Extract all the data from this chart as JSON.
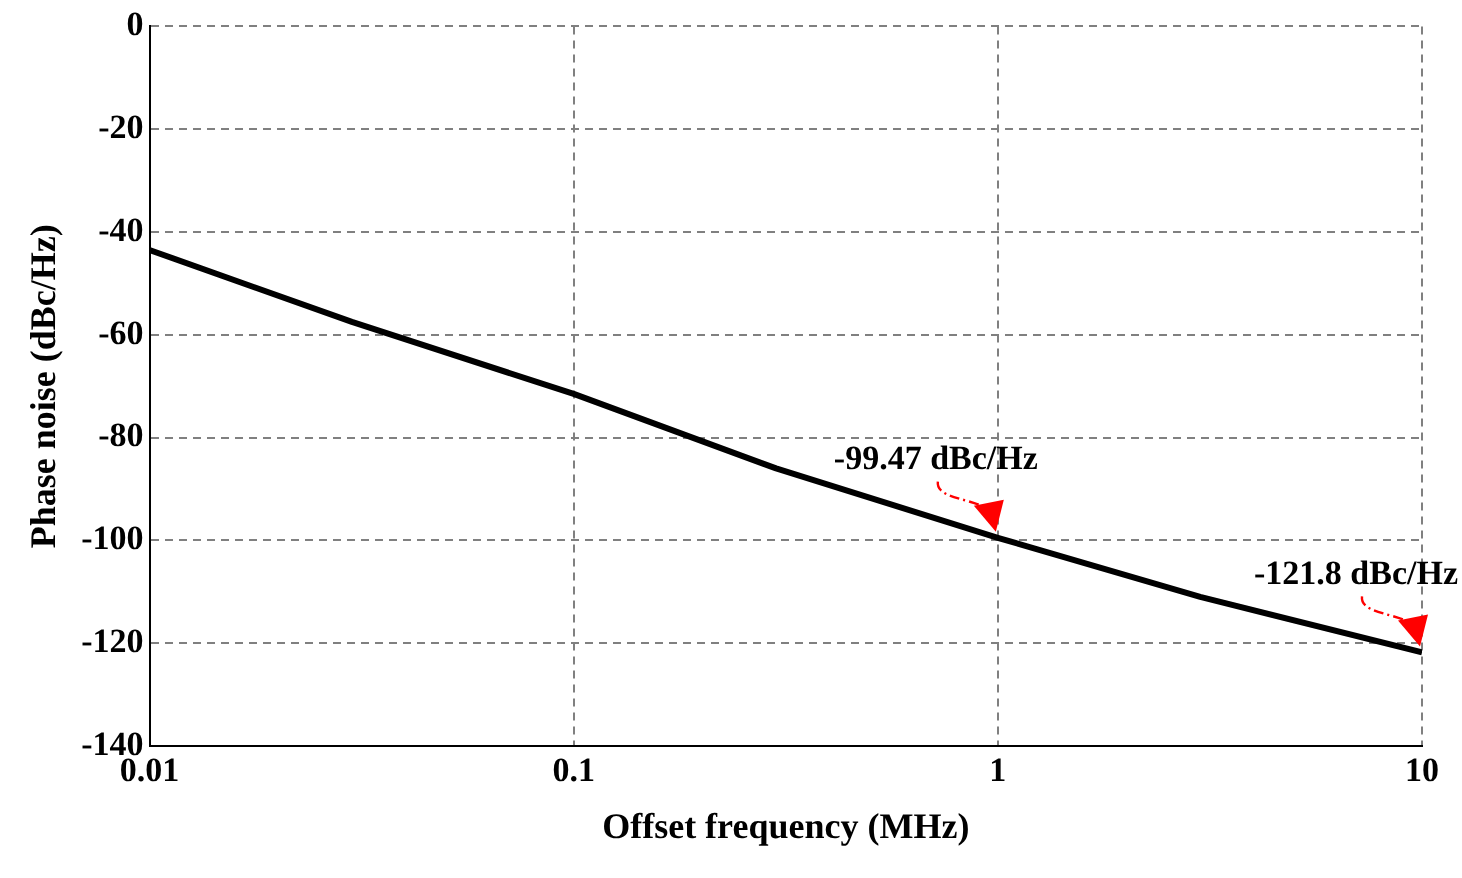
{
  "chart_data": {
    "type": "line",
    "xlabel": "Offset frequency (MHz)",
    "ylabel": "Phase noise (dBc/Hz)",
    "log": "x",
    "x": [
      0.01,
      0.03,
      0.1,
      0.3,
      1,
      3,
      10
    ],
    "series": [
      {
        "color": "#000000",
        "values": [
          -43.5,
          -57.5,
          -71.5,
          -86,
          -99.5,
          -111,
          -121.8
        ]
      }
    ],
    "xlim": [
      0.01,
      10
    ],
    "xticks": [
      0.01,
      0.1,
      1,
      10
    ],
    "ylim": [
      -140,
      0
    ],
    "yticks": [
      -140,
      -120,
      -100,
      -80,
      -60,
      -40,
      -20,
      0
    ],
    "grid": true,
    "legend": false,
    "marker": "none",
    "line_style": "solid",
    "annotations": [
      {
        "text": "-99.47 dBc/Hz",
        "x": 1,
        "y": -99.47
      },
      {
        "text": "-121.8 dBc/Hz",
        "x": 10,
        "y": -121.8
      }
    ]
  }
}
